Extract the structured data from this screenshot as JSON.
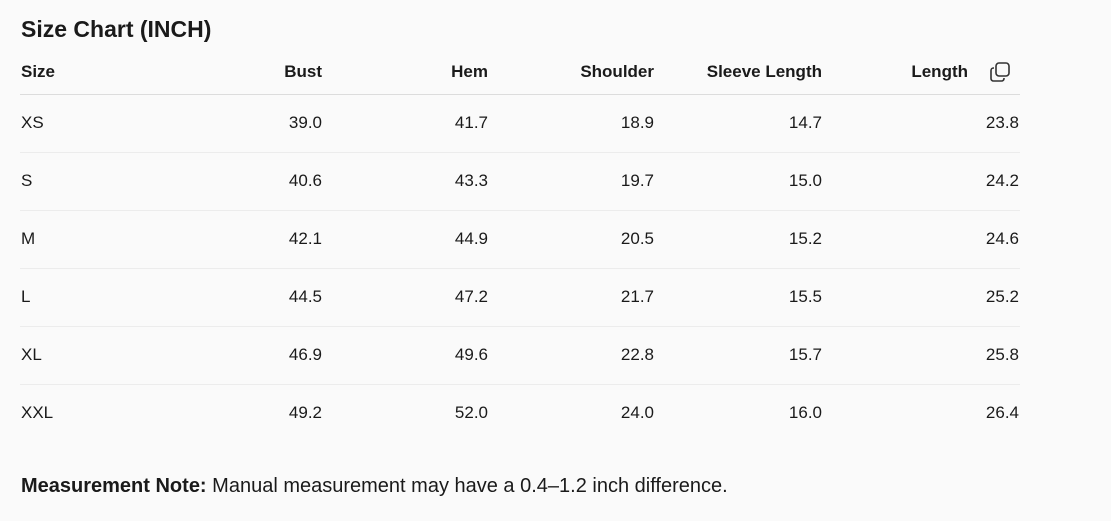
{
  "title": "Size Chart (INCH)",
  "table": {
    "headers": [
      "Size",
      "Bust",
      "Hem",
      "Shoulder",
      "Sleeve Length",
      "Length"
    ],
    "rows": [
      [
        "XS",
        "39.0",
        "41.7",
        "18.9",
        "14.7",
        "23.8"
      ],
      [
        "S",
        "40.6",
        "43.3",
        "19.7",
        "15.0",
        "24.2"
      ],
      [
        "M",
        "42.1",
        "44.9",
        "20.5",
        "15.2",
        "24.6"
      ],
      [
        "L",
        "44.5",
        "47.2",
        "21.7",
        "15.5",
        "25.2"
      ],
      [
        "XL",
        "46.9",
        "49.6",
        "22.8",
        "15.7",
        "25.8"
      ],
      [
        "XXL",
        "49.2",
        "52.0",
        "24.0",
        "16.0",
        "26.4"
      ]
    ]
  },
  "note": {
    "label": "Measurement Note:",
    "text": "Manual measurement may have a 0.4–1.2 inch difference."
  }
}
